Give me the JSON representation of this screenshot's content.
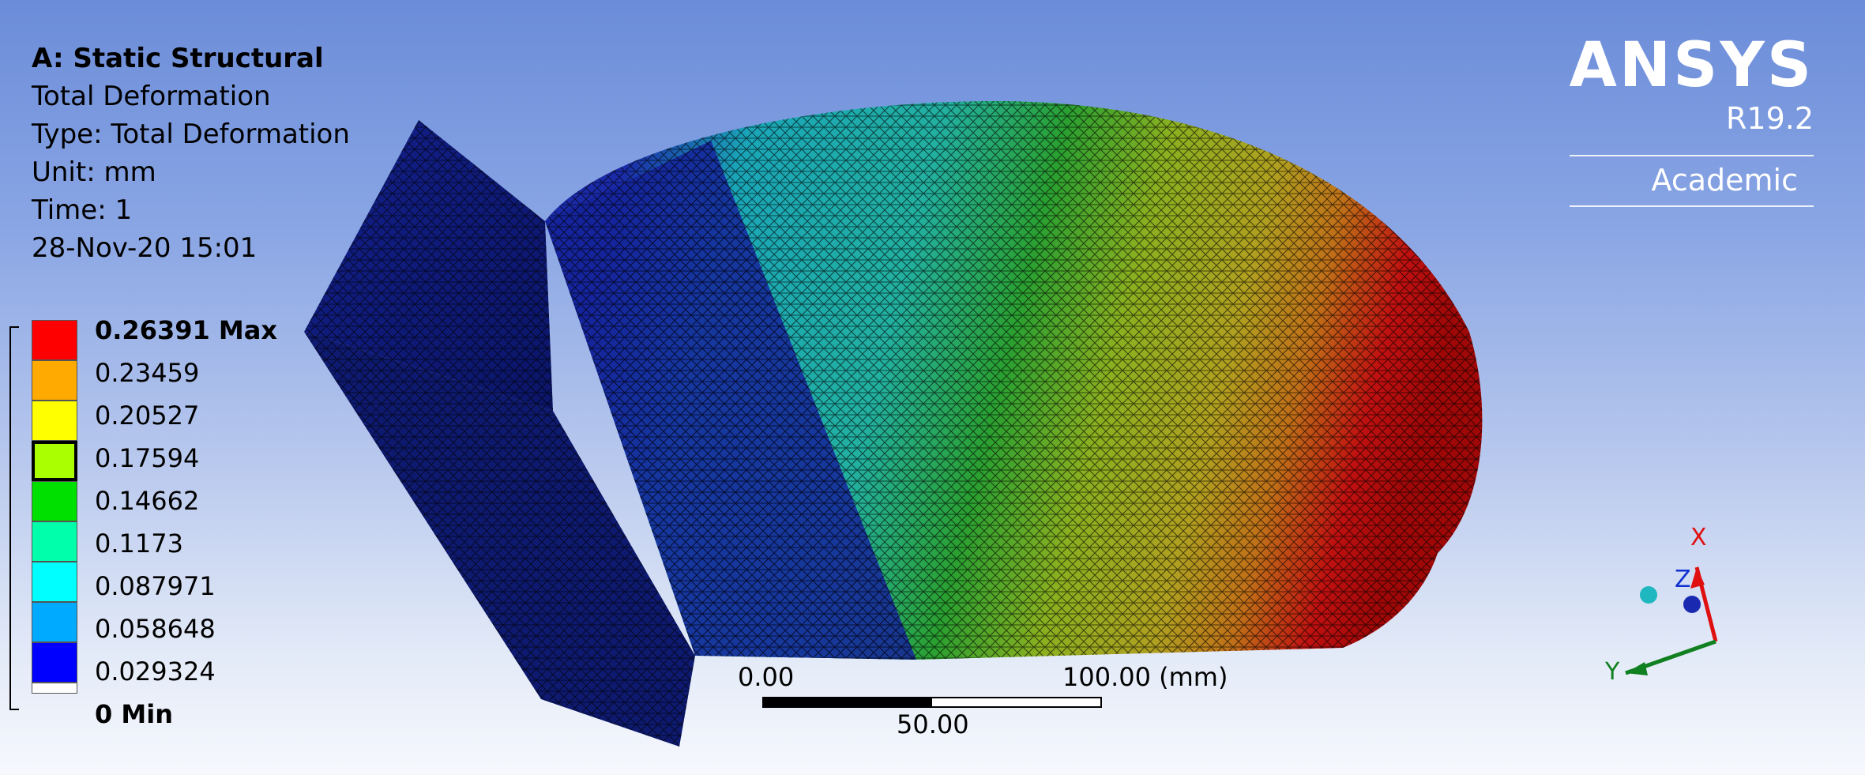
{
  "analysis": {
    "title": "A: Static Structural",
    "result": "Total Deformation",
    "type": "Type: Total Deformation",
    "unit": "Unit: mm",
    "time": "Time: 1",
    "timestamp": "28-Nov-20 15:01"
  },
  "legend": {
    "max_label": "0.26391 Max",
    "min_label": "0 Min",
    "values": [
      "0.23459",
      "0.20527",
      "0.17594",
      "0.14662",
      "0.1173",
      "0.087971",
      "0.058648",
      "0.029324"
    ],
    "band_colors": [
      "#ff0000",
      "#ffaa00",
      "#ffff00",
      "#aaff00",
      "#00e000",
      "#00ffaa",
      "#00ffff",
      "#00aaff",
      "#0000ff"
    ],
    "selected_band_index": 3
  },
  "branding": {
    "name": "ANSYS",
    "version": "R19.2",
    "edition": "Academic"
  },
  "scale_bar": {
    "left_label": "0.00",
    "right_label": "100.00 (mm)",
    "mid_label": "50.00"
  },
  "triad": {
    "x_label": "X",
    "y_label": "Y",
    "z_label": "Z"
  },
  "colors": {
    "x_axis": "#e01010",
    "y_axis": "#108020",
    "z_axis": "#1030d0"
  }
}
